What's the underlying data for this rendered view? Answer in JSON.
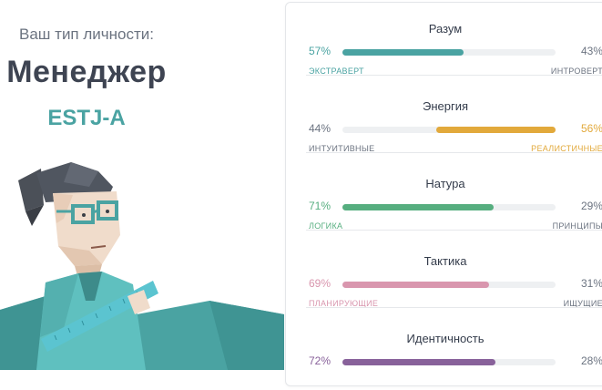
{
  "header": {
    "subtitle": "Ваш тип личности:",
    "type_name": "Менеджер",
    "type_code": "ESTJ-A"
  },
  "colors": {
    "teal": "#4aa3a2",
    "yellow": "#e2a93b",
    "green": "#56ae7f",
    "pink": "#d996ae",
    "purple": "#88619a",
    "gray_text": "#6b7380"
  },
  "traits": [
    {
      "title": "Разум",
      "left_pct": "57%",
      "right_pct": "43%",
      "left_label": "ЭКСТРАВЕРТ",
      "right_label": "ИНТРОВЕРТ",
      "dominant": "left",
      "value": 0.57,
      "color": "#4aa3a2"
    },
    {
      "title": "Энергия",
      "left_pct": "44%",
      "right_pct": "56%",
      "left_label": "ИНТУИТИВНЫЕ",
      "right_label": "РЕАЛИСТИЧНЫЕ",
      "dominant": "right",
      "value": 0.56,
      "color": "#e2a93b"
    },
    {
      "title": "Натура",
      "left_pct": "71%",
      "right_pct": "29%",
      "left_label": "ЛОГИКА",
      "right_label": "ПРИНЦИПЫ",
      "dominant": "left",
      "value": 0.71,
      "color": "#56ae7f"
    },
    {
      "title": "Тактика",
      "left_pct": "69%",
      "right_pct": "31%",
      "left_label": "ПЛАНИРУЮЩИЕ",
      "right_label": "ИЩУЩИЕ",
      "dominant": "left",
      "value": 0.69,
      "color": "#d996ae"
    },
    {
      "title": "Идентичность",
      "left_pct": "72%",
      "right_pct": "28%",
      "left_label": "",
      "right_label": "",
      "dominant": "left",
      "value": 0.72,
      "color": "#88619a"
    }
  ]
}
